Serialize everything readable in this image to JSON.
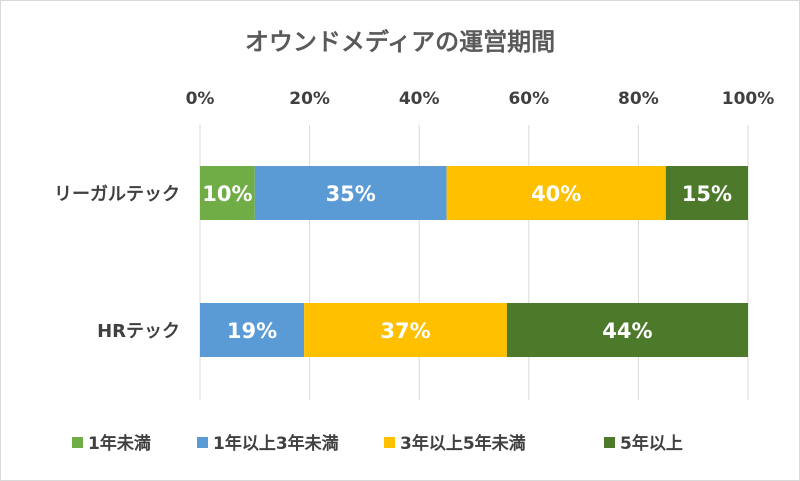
{
  "chart_data": {
    "type": "bar",
    "orientation": "horizontal",
    "stacked": "percent",
    "title": "オウンドメディアの運営期間",
    "categories": [
      "リーガルテック",
      "HRテック"
    ],
    "x_ticks": [
      "0%",
      "20%",
      "40%",
      "60%",
      "80%",
      "100%"
    ],
    "xlim": [
      0,
      100
    ],
    "grid": true,
    "legend_position": "bottom",
    "series": [
      {
        "name": "1年未満",
        "color": "#70ad47",
        "values": [
          10,
          0
        ]
      },
      {
        "name": "1年以上3年未満",
        "color": "#5b9bd5",
        "values": [
          35,
          19
        ]
      },
      {
        "name": "3年以上5年未満",
        "color": "#ffc000",
        "values": [
          40,
          37
        ]
      },
      {
        "name": "5年以上",
        "color": "#4d7a2a",
        "values": [
          15,
          44
        ]
      }
    ],
    "data_labels": [
      [
        "10%",
        null
      ],
      [
        "35%",
        "19%"
      ],
      [
        "40%",
        "37%"
      ],
      [
        "15%",
        "44%"
      ]
    ]
  }
}
